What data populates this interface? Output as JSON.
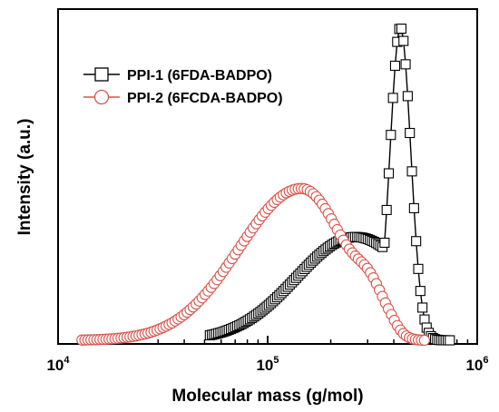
{
  "chart_data": {
    "type": "scatter",
    "title": "",
    "xlabel": "Molecular mass (g/mol)",
    "ylabel": "Intensity (a.u.)",
    "x_scale": "log",
    "xlim": [
      10000,
      1000000
    ],
    "ylim": [
      0,
      1
    ],
    "x_ticks": [
      {
        "base": "10",
        "exp": "4"
      },
      {
        "base": "10",
        "exp": "5"
      },
      {
        "base": "10",
        "exp": "6"
      }
    ],
    "grid": false,
    "legend_position": "top-left",
    "series": [
      {
        "name": "PPI-1 (6FDA-BADPO)",
        "marker": "square",
        "color": "#000000",
        "x_range": [
          53000,
          740000
        ],
        "peak_x": 430000,
        "peak_y": 1.0,
        "n_points": 115,
        "shoulder_at_y": 0.33
      },
      {
        "name": "PPI-2 (6FCDA-BADPO)",
        "marker": "circle",
        "color": "#d9534a",
        "x_range": [
          13000,
          560000
        ],
        "peak_x": 145000,
        "peak_y": 0.485,
        "n_points": 115,
        "shoulder_at_x": 310000
      }
    ]
  }
}
